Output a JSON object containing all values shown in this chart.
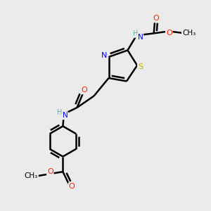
{
  "bg_color": "#ebebeb",
  "atom_colors": {
    "C": "#000000",
    "H": "#6fa8a8",
    "N": "#0000ff",
    "O": "#ff2200",
    "S": "#ccaa00"
  },
  "bond_color": "#000000",
  "bond_width": 1.8,
  "figsize": [
    3.0,
    3.0
  ],
  "dpi": 100
}
